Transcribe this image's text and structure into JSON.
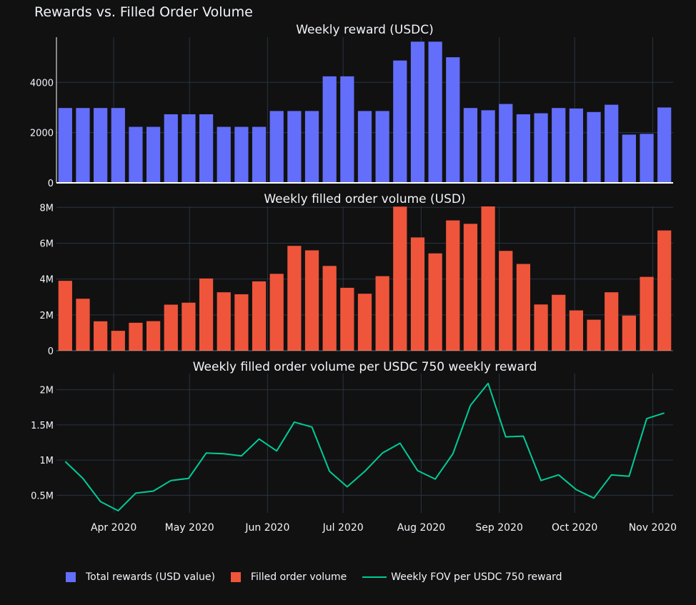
{
  "title": "Rewards vs. Filled Order Volume",
  "colors": {
    "background": "#111111",
    "grid": "#283442",
    "text": "#f2f5fa",
    "rewards": "#636efa",
    "volume": "#ef553b",
    "fov": "#00cc96"
  },
  "legend": [
    {
      "label": "Total rewards (USD value)",
      "kind": "bar",
      "color": "#636efa"
    },
    {
      "label": "Filled order volume",
      "kind": "bar",
      "color": "#ef553b"
    },
    {
      "label": "Weekly FOV per USDC 750 reward",
      "kind": "line",
      "color": "#00cc96"
    }
  ],
  "chart_data": [
    {
      "type": "bar",
      "title": "Weekly reward (USDC)",
      "series_name": "Total rewards (USD value)",
      "ylim": [
        0,
        5800
      ],
      "yticks": [
        0,
        2000,
        4000
      ],
      "ytick_labels": [
        "0",
        "2000",
        "4000"
      ],
      "values": [
        2980,
        2980,
        2980,
        2980,
        2230,
        2230,
        2730,
        2730,
        2730,
        2230,
        2230,
        2230,
        2860,
        2860,
        2860,
        4240,
        4240,
        2860,
        2860,
        4870,
        5620,
        5620,
        5000,
        2980,
        2890,
        3140,
        2730,
        2770,
        2980,
        2960,
        2820,
        3110,
        1920,
        1950,
        3000
      ]
    },
    {
      "type": "bar",
      "title": "Weekly filled order volume (USD)",
      "series_name": "Filled order volume",
      "ylim": [
        0,
        8050000
      ],
      "yticks": [
        0,
        2000000,
        4000000,
        6000000,
        8000000
      ],
      "ytick_labels": [
        "0",
        "2M",
        "4M",
        "6M",
        "8M"
      ],
      "values": [
        3900000,
        2900000,
        1640000,
        1110000,
        1560000,
        1650000,
        2570000,
        2680000,
        4030000,
        3260000,
        3150000,
        3870000,
        4290000,
        5850000,
        5600000,
        4730000,
        3510000,
        3180000,
        4160000,
        8040000,
        6320000,
        5430000,
        7270000,
        7080000,
        8050000,
        5570000,
        4840000,
        2580000,
        3120000,
        2250000,
        1730000,
        3260000,
        1960000,
        4120000,
        6710000
      ]
    },
    {
      "type": "line",
      "title": "Weekly filled order volume per USDC 750 weekly reward",
      "series_name": "Weekly FOV per USDC 750 reward",
      "ylim": [
        250000,
        2230000
      ],
      "yticks": [
        500000,
        1000000,
        1500000,
        2000000
      ],
      "ytick_labels": [
        "0.5M",
        "1M",
        "1.5M",
        "2M"
      ],
      "values": [
        980000,
        740000,
        410000,
        280000,
        530000,
        560000,
        710000,
        740000,
        1100000,
        1090000,
        1060000,
        1300000,
        1130000,
        1540000,
        1470000,
        840000,
        620000,
        840000,
        1100000,
        1240000,
        850000,
        730000,
        1090000,
        1780000,
        2090000,
        1330000,
        1340000,
        710000,
        790000,
        580000,
        460000,
        790000,
        770000,
        1590000,
        1670000
      ]
    }
  ],
  "x_axis": {
    "ticks": [
      {
        "label": "Apr 2020",
        "week_index": 3.25
      },
      {
        "label": "May 2020",
        "week_index": 7.55
      },
      {
        "label": "Jun 2020",
        "week_index": 11.98
      },
      {
        "label": "Jul 2020",
        "week_index": 16.27
      },
      {
        "label": "Aug 2020",
        "week_index": 20.7
      },
      {
        "label": "Sep 2020",
        "week_index": 25.13
      },
      {
        "label": "Oct 2020",
        "week_index": 29.41
      },
      {
        "label": "Nov 2020",
        "week_index": 33.84
      }
    ]
  }
}
